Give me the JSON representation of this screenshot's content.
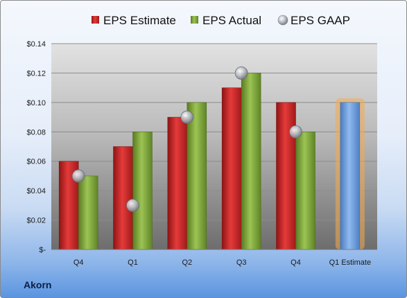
{
  "company": "Akorn",
  "colors": {
    "estimate": "#d42a2a",
    "actual": "#7fa63a",
    "gaap": "#b8bcc4",
    "forecast": "#6f9fd8",
    "forecast_glow": "#f5a94a"
  },
  "chart_data": {
    "type": "bar",
    "categories": [
      "Q4",
      "Q1",
      "Q2",
      "Q3",
      "Q4",
      "Q1 Estimate"
    ],
    "series": [
      {
        "name": "EPS Estimate",
        "kind": "bar",
        "values": [
          0.06,
          0.07,
          0.09,
          0.11,
          0.1,
          null
        ]
      },
      {
        "name": "EPS Actual",
        "kind": "bar",
        "values": [
          0.05,
          0.08,
          0.1,
          0.12,
          0.08,
          null
        ]
      },
      {
        "name": "EPS GAAP",
        "kind": "marker",
        "values": [
          0.05,
          0.03,
          0.09,
          0.12,
          0.08,
          null
        ]
      }
    ],
    "forecast": {
      "category": "Q1 Estimate",
      "value": 0.1
    },
    "ylim": [
      0,
      0.14
    ],
    "yticks": [
      0,
      0.02,
      0.04,
      0.06,
      0.08,
      0.1,
      0.12,
      0.14
    ],
    "ytick_labels": [
      "$-",
      "$0.02",
      "$0.04",
      "$0.06",
      "$0.08",
      "$0.10",
      "$0.12",
      "$0.14"
    ],
    "grid": true,
    "legend_position": "top"
  }
}
